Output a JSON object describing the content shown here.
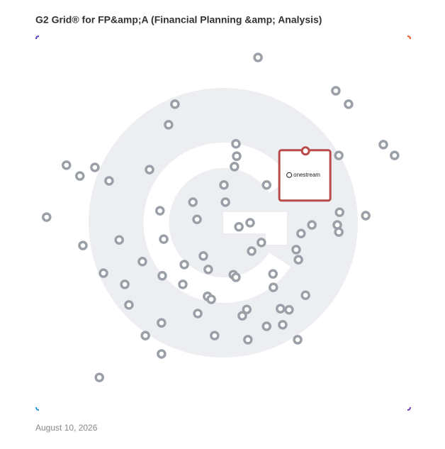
{
  "chart_data": {
    "type": "scatter",
    "title": "G2 Grid® for FP&amp;A (Financial Planning &amp; Analysis)",
    "date": "August 10, 2026",
    "xlim": [
      0,
      100
    ],
    "ylim": [
      0,
      100
    ],
    "color": "#9ba0a8",
    "x": [
      59.3,
      80.1,
      83.5,
      37.1,
      35.4,
      53.4,
      53.6,
      53.0,
      92.8,
      95.8,
      80.9,
      8.1,
      11.7,
      15.7,
      19.5,
      30.3,
      50.2,
      61.6,
      41.9,
      50.6,
      33.1,
      43.0,
      81.1,
      88.1,
      2.8,
      54.2,
      57.2,
      73.7,
      80.5,
      80.9,
      70.8,
      22.2,
      34.1,
      60.2,
      12.5,
      57.6,
      69.5,
      70.1,
      44.7,
      28.4,
      39.6,
      46.0,
      18.0,
      33.7,
      52.7,
      53.4,
      63.3,
      23.7,
      39.2,
      63.4,
      45.8,
      46.8,
      72.0,
      24.8,
      56.3,
      55.1,
      65.3,
      67.6,
      43.2,
      33.5,
      61.6,
      65.9,
      29.2,
      47.7,
      56.6,
      69.9,
      33.5,
      16.9
    ],
    "y": [
      94.3,
      85.4,
      81.8,
      81.8,
      76.3,
      71.2,
      67.9,
      65.1,
      71.0,
      68.1,
      68.1,
      65.5,
      62.6,
      64.9,
      61.3,
      64.3,
      60.2,
      60.2,
      55.6,
      55.6,
      53.3,
      51.0,
      52.9,
      52.0,
      51.6,
      49.0,
      50.1,
      49.5,
      49.5,
      47.6,
      47.2,
      45.5,
      45.7,
      44.8,
      44.0,
      42.5,
      42.9,
      40.2,
      41.2,
      39.7,
      38.9,
      37.6,
      36.6,
      35.9,
      36.2,
      35.5,
      36.4,
      33.6,
      33.6,
      32.8,
      30.4,
      29.6,
      30.7,
      28.1,
      26.9,
      25.2,
      27.1,
      26.8,
      25.8,
      23.3,
      22.4,
      22.8,
      19.9,
      19.9,
      18.8,
      18.8,
      15.0,
      8.7
    ],
    "highlight": {
      "label": "onestream",
      "x": 72.0,
      "y": 69.3,
      "color": "#b84a4a"
    }
  }
}
